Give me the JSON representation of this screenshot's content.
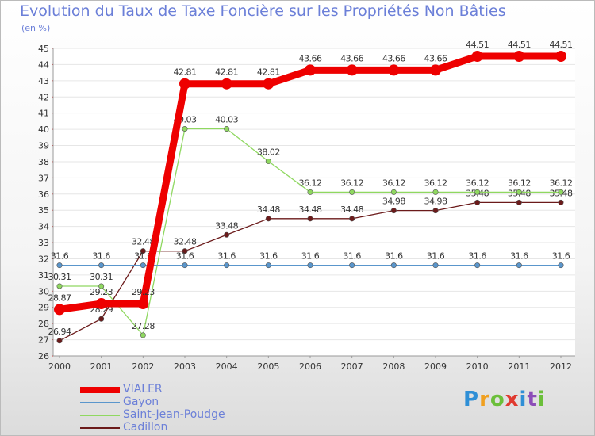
{
  "chart_data": {
    "type": "line",
    "title": "Evolution du Taux de Taxe Foncière sur les Propriétés Non Bâties",
    "ylabel": "(en %)",
    "xlabel": "",
    "ylim": [
      26,
      45
    ],
    "yticks": [
      "26",
      "27",
      "28",
      "29",
      "30",
      "31",
      "32",
      "33",
      "34",
      "35",
      "36",
      "37",
      "38",
      "39",
      "40",
      "41",
      "42",
      "43",
      "44",
      "45"
    ],
    "categories": [
      "2000",
      "2001",
      "2002",
      "2003",
      "2004",
      "2005",
      "2006",
      "2007",
      "2008",
      "2009",
      "2010",
      "2011",
      "2012"
    ],
    "series": [
      {
        "name": "Cadillon",
        "color": "#6b1a1a",
        "values": [
          26.94,
          28.29,
          32.48,
          32.48,
          33.48,
          34.48,
          34.48,
          34.48,
          34.98,
          34.98,
          35.48,
          35.48,
          35.48
        ],
        "labels": [
          "26.94",
          "28.29",
          "32.48",
          "32.48",
          "33.48",
          "34.48",
          "34.48",
          "34.48",
          "34.98",
          "34.98",
          "35.48",
          "35.48",
          "35.48"
        ]
      },
      {
        "name": "Saint-Jean-Poudge",
        "color": "#8fd860",
        "values": [
          30.31,
          30.31,
          27.28,
          40.03,
          40.03,
          38.02,
          36.12,
          36.12,
          36.12,
          36.12,
          36.12,
          36.12,
          36.12
        ],
        "labels": [
          "30.31",
          "30.31",
          "27.28",
          "40.03",
          "40.03",
          "38.02",
          "36.12",
          "36.12",
          "36.12",
          "36.12",
          "36.12",
          "36.12",
          "36.12"
        ]
      },
      {
        "name": "Gayon",
        "color": "#5a96cc",
        "values": [
          31.6,
          31.6,
          31.6,
          31.6,
          31.6,
          31.6,
          31.6,
          31.6,
          31.6,
          31.6,
          31.6,
          31.6,
          31.6
        ],
        "labels": [
          "31.6",
          "31.6",
          "31.6",
          "31.6",
          "31.6",
          "31.6",
          "31.6",
          "31.6",
          "31.6",
          "31.6",
          "31.6",
          "31.6",
          "31.6"
        ]
      },
      {
        "name": "VIALER",
        "color": "#ee0000",
        "values": [
          28.87,
          29.23,
          29.23,
          42.81,
          42.81,
          42.81,
          43.66,
          43.66,
          43.66,
          43.66,
          44.51,
          44.51,
          44.51
        ],
        "labels": [
          "28.87",
          "29.23",
          "29.23",
          "42.81",
          "42.81",
          "42.81",
          "43.66",
          "43.66",
          "43.66",
          "43.66",
          "44.51",
          "44.51",
          "44.51"
        ]
      }
    ],
    "legend": {
      "position": "bottom-left",
      "entries": [
        "VIALER",
        "Gayon",
        "Saint-Jean-Poudge",
        "Cadillon"
      ]
    }
  },
  "logo": {
    "text": "Proxiti",
    "letters": [
      "P",
      "r",
      "o",
      "x",
      "i",
      "t",
      "i"
    ],
    "colors": [
      "#2f8fd6",
      "#f0a020",
      "#6bbf3a",
      "#e03a30",
      "#2f8fd6",
      "#8c4db8",
      "#6bbf3a"
    ]
  }
}
